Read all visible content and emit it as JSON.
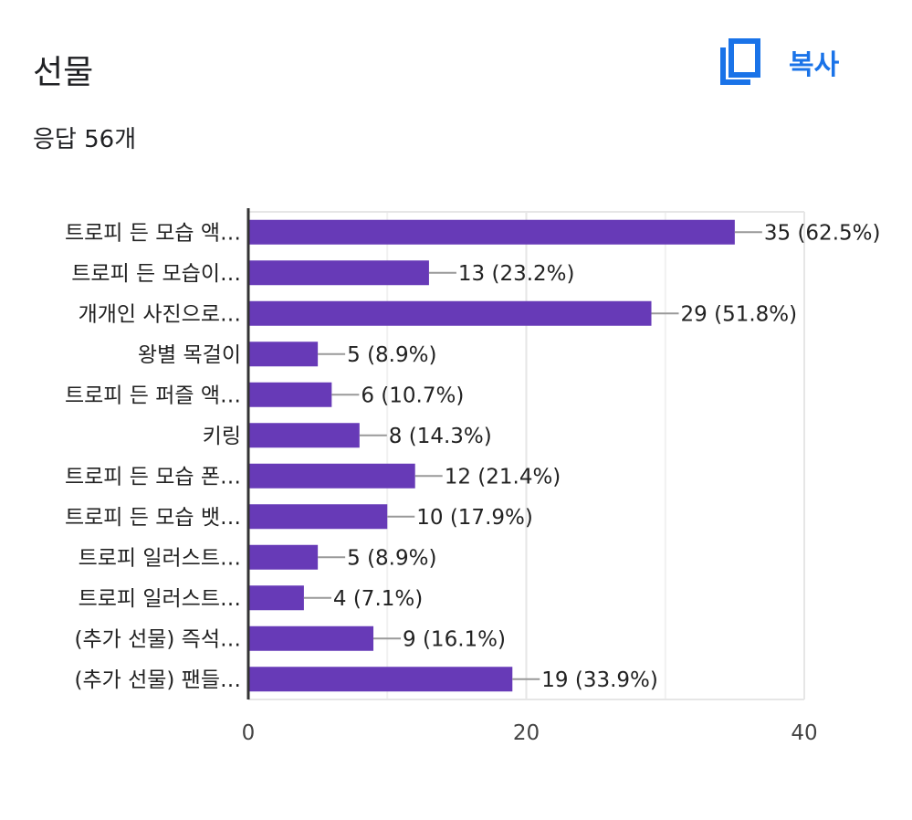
{
  "header": {
    "title": "선물",
    "copy_label": "복사",
    "response_count": "응답 56개"
  },
  "icons": {
    "copy": "copy-icon"
  },
  "colors": {
    "bar": "#673ab7",
    "accent": "#1a73e8"
  },
  "chart_data": {
    "type": "bar",
    "orientation": "horizontal",
    "categories": [
      "트로피 든 모습 액…",
      "트로피 든 모습이…",
      "개개인 사진으로…",
      "왕별 목걸이",
      "트로피 든 퍼즐 액…",
      "키링",
      "트로피 든 모습 폰…",
      "트로피 든 모습 뱃…",
      "트로피 일러스트…",
      "트로피 일러스트…",
      "(추가 선물) 즉석…",
      "(추가 선물) 팬들…"
    ],
    "values": [
      35,
      13,
      29,
      5,
      6,
      8,
      12,
      10,
      5,
      4,
      9,
      19
    ],
    "value_labels": [
      "35 (62.5%)",
      "13 (23.2%)",
      "29 (51.8%)",
      "5 (8.9%)",
      "6 (10.7%)",
      "8 (14.3%)",
      "12 (21.4%)",
      "10 (17.9%)",
      "5 (8.9%)",
      "4 (7.1%)",
      "9 (16.1%)",
      "19 (33.9%)"
    ],
    "xlim": [
      0,
      40
    ],
    "xticks": [
      "0",
      "20",
      "40"
    ],
    "grid": true
  }
}
